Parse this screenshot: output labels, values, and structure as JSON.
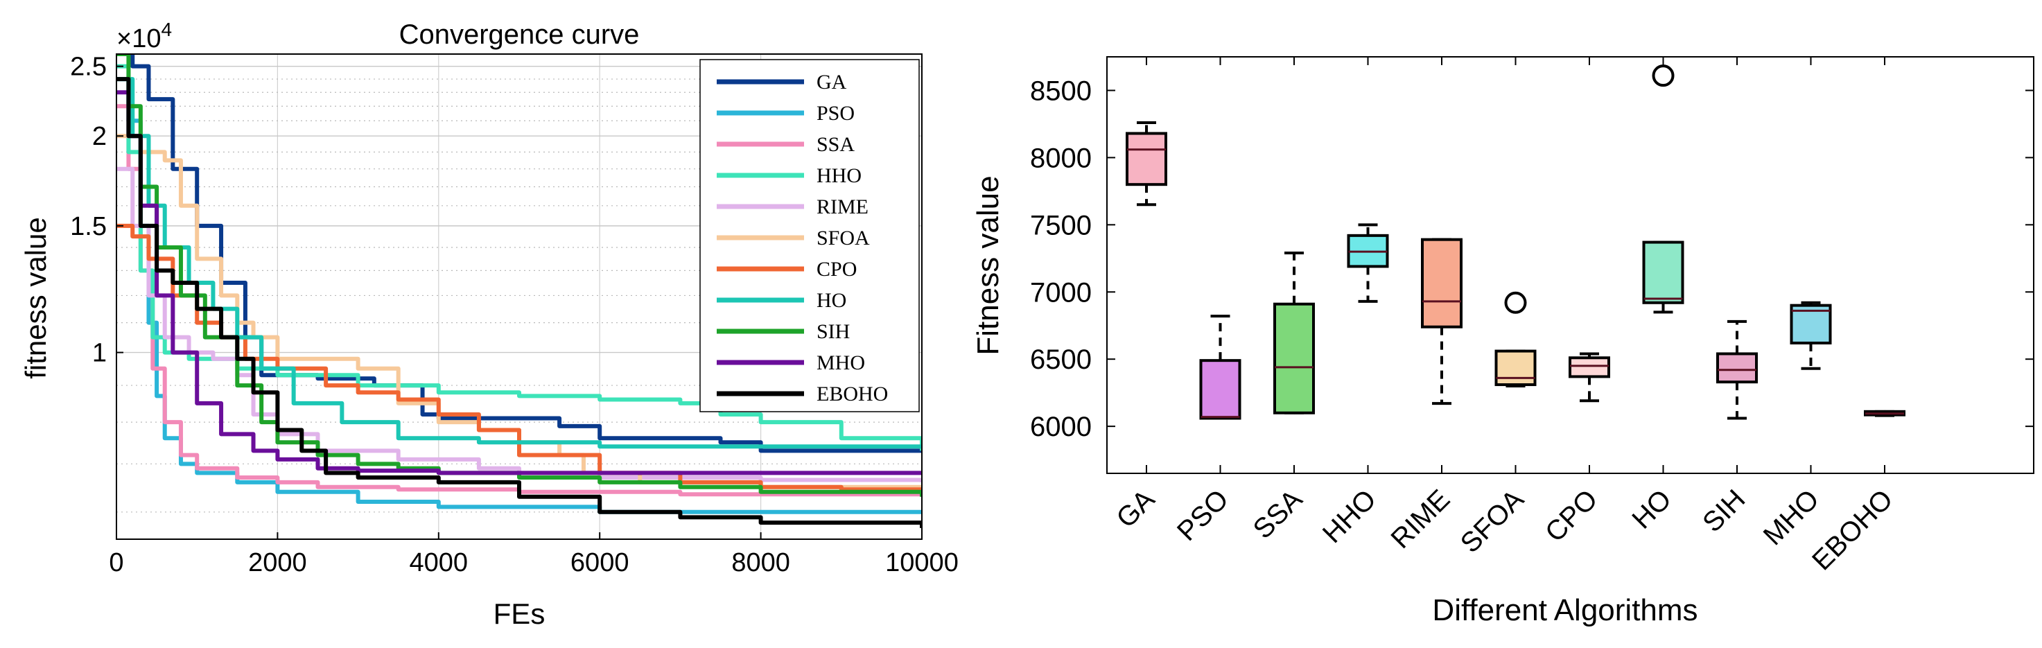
{
  "chart_data": [
    {
      "type": "line",
      "title": "Convergence curve",
      "xlabel": "FEs",
      "ylabel": "fitness value",
      "exponent_label": "×10",
      "exponent_power": "4",
      "xlim": [
        0,
        10000
      ],
      "ylim_log": [
        5500,
        26000
      ],
      "x_ticks": [
        0,
        2000,
        4000,
        6000,
        8000,
        10000
      ],
      "x_tick_labels": [
        "0",
        "2000",
        "4000",
        "6000",
        "8000",
        "10000"
      ],
      "y_ticks": [
        10000,
        15000,
        20000,
        25000
      ],
      "y_tick_labels": [
        "1",
        "1.5",
        "2",
        "2.5"
      ],
      "y_minor_grid": [
        6000,
        7000,
        8000,
        9000,
        11000,
        12000,
        13000,
        14000,
        16000,
        17000,
        18000,
        19000,
        21000,
        22000,
        23000,
        24000
      ],
      "grid": true,
      "legend_position": "top-right",
      "series": [
        {
          "name": "GA",
          "color": "#0a3a8c",
          "points": [
            [
              0,
              26000
            ],
            [
              200,
              25000
            ],
            [
              400,
              22500
            ],
            [
              700,
              18000
            ],
            [
              1000,
              15000
            ],
            [
              1300,
              12500
            ],
            [
              1600,
              10500
            ],
            [
              1800,
              9300
            ],
            [
              2500,
              9200
            ],
            [
              3200,
              9000
            ],
            [
              3800,
              8200
            ],
            [
              4000,
              8100
            ],
            [
              5500,
              7900
            ],
            [
              6000,
              7600
            ],
            [
              7500,
              7500
            ],
            [
              8000,
              7300
            ],
            [
              10000,
              7300
            ]
          ]
        },
        {
          "name": "PSO",
          "color": "#2bb5d8",
          "points": [
            [
              0,
              24000
            ],
            [
              150,
              21000
            ],
            [
              300,
              15000
            ],
            [
              400,
              11000
            ],
            [
              500,
              8700
            ],
            [
              600,
              7600
            ],
            [
              800,
              7000
            ],
            [
              1000,
              6800
            ],
            [
              1500,
              6600
            ],
            [
              2000,
              6400
            ],
            [
              3000,
              6200
            ],
            [
              4000,
              6100
            ],
            [
              5000,
              6100
            ],
            [
              6000,
              6000
            ],
            [
              10000,
              5980
            ]
          ]
        },
        {
          "name": "SSA",
          "color": "#f28ab8",
          "points": [
            [
              0,
              22000
            ],
            [
              150,
              18000
            ],
            [
              300,
              13000
            ],
            [
              450,
              9500
            ],
            [
              600,
              8000
            ],
            [
              800,
              7200
            ],
            [
              1000,
              6900
            ],
            [
              1500,
              6700
            ],
            [
              2000,
              6600
            ],
            [
              2500,
              6500
            ],
            [
              3500,
              6450
            ],
            [
              5000,
              6400
            ],
            [
              7000,
              6350
            ],
            [
              10000,
              6300
            ]
          ]
        },
        {
          "name": "HHO",
          "color": "#3de3b8",
          "points": [
            [
              0,
              25000
            ],
            [
              150,
              19000
            ],
            [
              300,
              13000
            ],
            [
              450,
              10500
            ],
            [
              600,
              10000
            ],
            [
              900,
              9800
            ],
            [
              1500,
              9500
            ],
            [
              2000,
              9300
            ],
            [
              3000,
              9000
            ],
            [
              4000,
              8800
            ],
            [
              5000,
              8700
            ],
            [
              6000,
              8600
            ],
            [
              7000,
              8500
            ],
            [
              7500,
              8200
            ],
            [
              8000,
              8000
            ],
            [
              9000,
              7600
            ],
            [
              10000,
              7300
            ]
          ]
        },
        {
          "name": "RIME",
          "color": "#e0b3ea",
          "points": [
            [
              0,
              18000
            ],
            [
              200,
              15000
            ],
            [
              400,
              12000
            ],
            [
              600,
              10500
            ],
            [
              900,
              10000
            ],
            [
              1200,
              9800
            ],
            [
              1500,
              9300
            ],
            [
              1700,
              8200
            ],
            [
              2000,
              7700
            ],
            [
              2500,
              7300
            ],
            [
              3500,
              7100
            ],
            [
              4500,
              6900
            ],
            [
              5000,
              6800
            ],
            [
              6000,
              6700
            ],
            [
              8000,
              6650
            ],
            [
              10000,
              6600
            ]
          ]
        },
        {
          "name": "SFOA",
          "color": "#f7c99a",
          "points": [
            [
              0,
              20000
            ],
            [
              300,
              19000
            ],
            [
              600,
              18500
            ],
            [
              800,
              16000
            ],
            [
              1000,
              13500
            ],
            [
              1300,
              12000
            ],
            [
              1500,
              11000
            ],
            [
              1700,
              10500
            ],
            [
              2000,
              9800
            ],
            [
              3000,
              9500
            ],
            [
              3500,
              8500
            ],
            [
              4000,
              8000
            ],
            [
              4500,
              7800
            ],
            [
              5000,
              7500
            ],
            [
              5500,
              7200
            ],
            [
              5800,
              6800
            ],
            [
              6500,
              6600
            ],
            [
              8000,
              6500
            ],
            [
              10000,
              6400
            ]
          ]
        },
        {
          "name": "CPO",
          "color": "#f06633",
          "points": [
            [
              0,
              15000
            ],
            [
              200,
              14500
            ],
            [
              400,
              13500
            ],
            [
              700,
              12000
            ],
            [
              1000,
              11000
            ],
            [
              1300,
              10500
            ],
            [
              1600,
              9800
            ],
            [
              2000,
              9500
            ],
            [
              2600,
              9000
            ],
            [
              3000,
              8800
            ],
            [
              3500,
              8600
            ],
            [
              4000,
              8200
            ],
            [
              4500,
              7800
            ],
            [
              5000,
              7200
            ],
            [
              6000,
              6800
            ],
            [
              7000,
              6600
            ],
            [
              8000,
              6500
            ],
            [
              9000,
              6450
            ],
            [
              10000,
              6400
            ]
          ]
        },
        {
          "name": "HO",
          "color": "#1cc6b4",
          "points": [
            [
              0,
              24000
            ],
            [
              200,
              20000
            ],
            [
              400,
              16000
            ],
            [
              600,
              14000
            ],
            [
              900,
              12500
            ],
            [
              1200,
              11500
            ],
            [
              1500,
              10500
            ],
            [
              1800,
              9500
            ],
            [
              2200,
              8500
            ],
            [
              2800,
              8000
            ],
            [
              3500,
              7600
            ],
            [
              4500,
              7500
            ],
            [
              6000,
              7400
            ],
            [
              10000,
              7400
            ]
          ]
        },
        {
          "name": "SIH",
          "color": "#1ea32a",
          "points": [
            [
              0,
              26000
            ],
            [
              150,
              22000
            ],
            [
              300,
              17000
            ],
            [
              500,
              14000
            ],
            [
              800,
              12000
            ],
            [
              1100,
              10500
            ],
            [
              1500,
              9000
            ],
            [
              1800,
              8000
            ],
            [
              2000,
              7500
            ],
            [
              2500,
              7200
            ],
            [
              3000,
              7000
            ],
            [
              3500,
              6900
            ],
            [
              4000,
              6800
            ],
            [
              5000,
              6700
            ],
            [
              6000,
              6600
            ],
            [
              7000,
              6500
            ],
            [
              8000,
              6400
            ],
            [
              10000,
              6300
            ]
          ]
        },
        {
          "name": "MHO",
          "color": "#6a0e9a",
          "points": [
            [
              0,
              23000
            ],
            [
              150,
              20000
            ],
            [
              300,
              16000
            ],
            [
              500,
              12000
            ],
            [
              700,
              10000
            ],
            [
              1000,
              8500
            ],
            [
              1300,
              7700
            ],
            [
              1700,
              7300
            ],
            [
              2000,
              7100
            ],
            [
              2500,
              6900
            ],
            [
              3000,
              6850
            ],
            [
              4000,
              6800
            ],
            [
              5000,
              6800
            ],
            [
              7000,
              6800
            ],
            [
              8000,
              6800
            ],
            [
              10000,
              6800
            ]
          ]
        },
        {
          "name": "EBOHO",
          "color": "#000000",
          "points": [
            [
              0,
              24000
            ],
            [
              150,
              20000
            ],
            [
              300,
              15000
            ],
            [
              500,
              13000
            ],
            [
              700,
              12500
            ],
            [
              1000,
              11500
            ],
            [
              1300,
              10500
            ],
            [
              1500,
              9800
            ],
            [
              1700,
              8800
            ],
            [
              2000,
              7800
            ],
            [
              2300,
              7300
            ],
            [
              2600,
              6800
            ],
            [
              3000,
              6700
            ],
            [
              4000,
              6600
            ],
            [
              5000,
              6300
            ],
            [
              6000,
              6000
            ],
            [
              7000,
              5900
            ],
            [
              8000,
              5800
            ],
            [
              10000,
              5700
            ]
          ]
        }
      ]
    },
    {
      "type": "box",
      "title": "",
      "xlabel": "Different Algorithms",
      "ylabel": "Fitness value",
      "ylim": [
        5650,
        8750
      ],
      "y_ticks": [
        6000,
        6500,
        7000,
        7500,
        8000,
        8500
      ],
      "y_tick_labels": [
        "6000",
        "6500",
        "7000",
        "7500",
        "8000",
        "8500"
      ],
      "grid": false,
      "categories": [
        "GA",
        "PSO",
        "SSA",
        "HHO",
        "RIME",
        "SFOA",
        "CPO",
        "HO",
        "SIH",
        "MHO",
        "EBOHO"
      ],
      "boxes": [
        {
          "name": "GA",
          "min": 7650,
          "q1": 7800,
          "median": 8060,
          "q3": 8180,
          "max": 8260,
          "outliers": [],
          "fill": "#f7b3c2"
        },
        {
          "name": "PSO",
          "min": 6060,
          "q1": 6060,
          "median": 6070,
          "q3": 6490,
          "max": 6820,
          "outliers": [],
          "fill": "#d88ae8"
        },
        {
          "name": "SSA",
          "min": 6100,
          "q1": 6100,
          "median": 6440,
          "q3": 6910,
          "max": 7290,
          "outliers": [],
          "fill": "#7ed87a"
        },
        {
          "name": "HHO",
          "min": 6930,
          "q1": 7190,
          "median": 7300,
          "q3": 7420,
          "max": 7500,
          "outliers": [],
          "fill": "#6fe8e8"
        },
        {
          "name": "RIME",
          "min": 6170,
          "q1": 6740,
          "median": 6930,
          "q3": 7390,
          "max": 7390,
          "outliers": [],
          "fill": "#f7a98f"
        },
        {
          "name": "SFOA",
          "min": 6300,
          "q1": 6310,
          "median": 6360,
          "q3": 6560,
          "max": 6560,
          "outliers": [
            6920
          ],
          "fill": "#f7d8a8"
        },
        {
          "name": "CPO",
          "min": 6190,
          "q1": 6370,
          "median": 6450,
          "q3": 6510,
          "max": 6540,
          "outliers": [],
          "fill": "#ffd8d8"
        },
        {
          "name": "HO",
          "min": 6850,
          "q1": 6920,
          "median": 6950,
          "q3": 7370,
          "max": 7370,
          "outliers": [
            8610
          ],
          "fill": "#8ee8c8"
        },
        {
          "name": "SIH",
          "min": 6060,
          "q1": 6330,
          "median": 6420,
          "q3": 6540,
          "max": 6780,
          "outliers": [],
          "fill": "#e8a8c8"
        },
        {
          "name": "MHO",
          "min": 6430,
          "q1": 6620,
          "median": 6860,
          "q3": 6900,
          "max": 6920,
          "outliers": [],
          "fill": "#8ad8e8"
        },
        {
          "name": "EBOHO",
          "min": 6080,
          "q1": 6085,
          "median": 6095,
          "q3": 6110,
          "max": 6110,
          "outliers": [],
          "fill": "#c8c8c8"
        }
      ]
    }
  ]
}
